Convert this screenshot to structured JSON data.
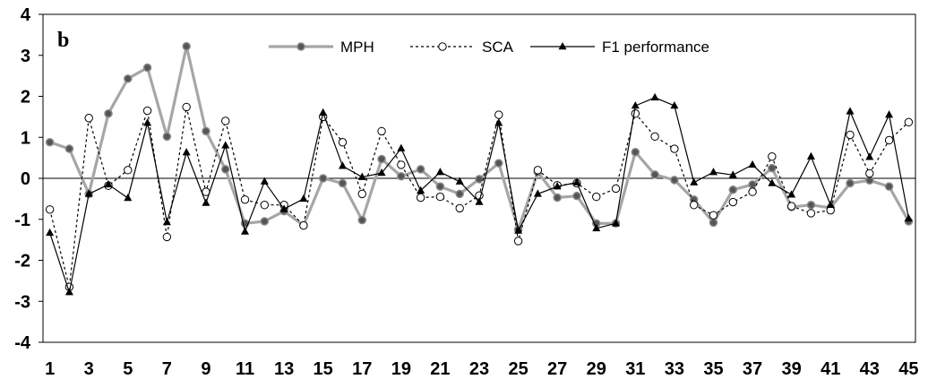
{
  "chart_data": {
    "type": "line",
    "panel_label": "b",
    "title": "",
    "xlabel": "",
    "ylabel": "",
    "ylim": [
      -4,
      4
    ],
    "yticks": [
      "4",
      "3",
      "2",
      "1",
      "0",
      "-1",
      "-2",
      "-3",
      "-4"
    ],
    "x": [
      1,
      2,
      3,
      4,
      5,
      6,
      7,
      8,
      9,
      10,
      11,
      12,
      13,
      14,
      15,
      16,
      17,
      18,
      19,
      20,
      21,
      22,
      23,
      24,
      25,
      26,
      27,
      28,
      29,
      30,
      31,
      32,
      33,
      34,
      35,
      36,
      37,
      38,
      39,
      40,
      41,
      42,
      43,
      44,
      45
    ],
    "xtick_labels": [
      "1",
      "3",
      "5",
      "7",
      "9",
      "11",
      "13",
      "15",
      "17",
      "19",
      "21",
      "23",
      "25",
      "27",
      "29",
      "31",
      "33",
      "35",
      "37",
      "39",
      "41",
      "43",
      "45"
    ],
    "grid": false,
    "legend_position": "top",
    "series": [
      {
        "name": "MPH",
        "style": "solid-gray-filled-circle",
        "color": "#a6a6a6",
        "values": [
          0.88,
          0.72,
          -0.38,
          1.58,
          2.43,
          2.7,
          1.02,
          3.22,
          1.15,
          0.22,
          -1.1,
          -1.05,
          -0.8,
          -1.15,
          0.0,
          -0.12,
          -1.02,
          0.47,
          0.05,
          0.22,
          -0.2,
          -0.38,
          -0.02,
          0.37,
          -1.25,
          0.15,
          -0.47,
          -0.43,
          -1.1,
          -1.1,
          0.64,
          0.09,
          -0.04,
          -0.52,
          -1.08,
          -0.28,
          -0.15,
          0.25,
          -0.7,
          -0.65,
          -0.72,
          -0.12,
          -0.05,
          -0.2,
          -1.05
        ]
      },
      {
        "name": "SCA",
        "style": "dotted-open-circle",
        "color": "#000000",
        "values": [
          -0.76,
          -2.65,
          1.47,
          -0.18,
          0.2,
          1.65,
          -1.43,
          1.74,
          -0.33,
          1.4,
          -0.52,
          -0.65,
          -0.65,
          -1.15,
          1.5,
          0.88,
          -0.38,
          1.15,
          0.33,
          -0.47,
          -0.45,
          -0.73,
          -0.42,
          1.55,
          -1.53,
          0.2,
          -0.17,
          -0.12,
          -0.45,
          -0.25,
          1.58,
          1.02,
          0.72,
          -0.65,
          -0.9,
          -0.58,
          -0.33,
          0.53,
          -0.68,
          -0.85,
          -0.78,
          1.06,
          0.12,
          0.93,
          1.37
        ]
      },
      {
        "name": "F1 performance",
        "style": "solid-black-triangle",
        "color": "#000000",
        "values": [
          -1.33,
          -2.78,
          -0.38,
          -0.15,
          -0.48,
          1.35,
          -1.07,
          0.63,
          -0.6,
          0.8,
          -1.3,
          -0.08,
          -0.75,
          -0.5,
          1.6,
          0.3,
          0.03,
          0.13,
          0.73,
          -0.3,
          0.15,
          -0.08,
          -0.58,
          1.35,
          -1.28,
          -0.38,
          -0.2,
          -0.1,
          -1.22,
          -1.1,
          1.77,
          1.97,
          1.77,
          -0.1,
          0.15,
          0.08,
          0.33,
          -0.12,
          -0.4,
          0.53,
          -0.65,
          1.63,
          0.52,
          1.55,
          -0.98
        ]
      }
    ]
  }
}
